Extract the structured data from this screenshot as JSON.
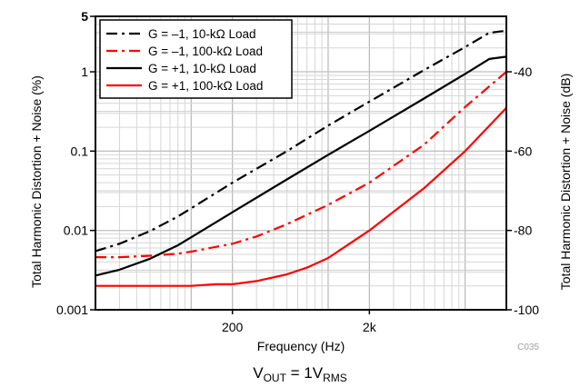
{
  "chart_data": {
    "type": "line",
    "x_scale": "log",
    "y_scale": "log",
    "xlabel": "Frequency (Hz)",
    "ylabel": "Total Harmonic Distortion + Noise (%)",
    "y2label": "Total Harmonic Distortion + Noise (dB)",
    "xlim": [
      20,
      20000
    ],
    "ylim": [
      0.001,
      5
    ],
    "y2lim": [
      -100,
      -26
    ],
    "grid": true,
    "legend_position": "top-left",
    "x_tick_labels": [
      "200",
      "2k"
    ],
    "y_tick_labels": [
      "0.001",
      "0.01",
      "0.1",
      "1",
      "5"
    ],
    "y2_tick_labels": [
      "-100",
      "-80",
      "-60",
      "-40"
    ],
    "figure_id": "C035",
    "caption": {
      "main": "V",
      "sub1": "OUT",
      "mid": " = 1V",
      "sub2": "RMS"
    },
    "series": [
      {
        "name": "G = –1, 10-kΩ Load",
        "color": "#000000",
        "style": "dashdot",
        "x": [
          20,
          30,
          50,
          80,
          100,
          200,
          500,
          1000,
          2000,
          5000,
          10000,
          15000,
          20000
        ],
        "y": [
          0.0055,
          0.0068,
          0.0098,
          0.015,
          0.019,
          0.04,
          0.1,
          0.21,
          0.42,
          1.05,
          2.05,
          3.1,
          3.3
        ]
      },
      {
        "name": "G = –1, 100-kΩ Load",
        "color": "#ff0000",
        "style": "dashdot",
        "x": [
          20,
          30,
          50,
          80,
          100,
          200,
          300,
          500,
          1000,
          2000,
          5000,
          10000,
          20000
        ],
        "y": [
          0.0046,
          0.0046,
          0.0048,
          0.0051,
          0.0054,
          0.0068,
          0.0084,
          0.012,
          0.021,
          0.04,
          0.12,
          0.36,
          1.0
        ]
      },
      {
        "name": "G = +1, 10-kΩ Load",
        "color": "#000000",
        "style": "solid",
        "x": [
          20,
          30,
          50,
          80,
          100,
          200,
          500,
          1000,
          2000,
          5000,
          10000,
          15000,
          20000
        ],
        "y": [
          0.0027,
          0.0032,
          0.0044,
          0.0065,
          0.0082,
          0.017,
          0.044,
          0.09,
          0.18,
          0.46,
          0.94,
          1.45,
          1.55
        ]
      },
      {
        "name": "G = +1, 100-kΩ Load",
        "color": "#ff0000",
        "style": "solid",
        "x": [
          20,
          50,
          100,
          150,
          200,
          300,
          500,
          700,
          1000,
          2000,
          5000,
          10000,
          20000
        ],
        "y": [
          0.002,
          0.002,
          0.002,
          0.0021,
          0.0021,
          0.0023,
          0.0028,
          0.0034,
          0.0045,
          0.01,
          0.034,
          0.1,
          0.35
        ]
      }
    ]
  }
}
